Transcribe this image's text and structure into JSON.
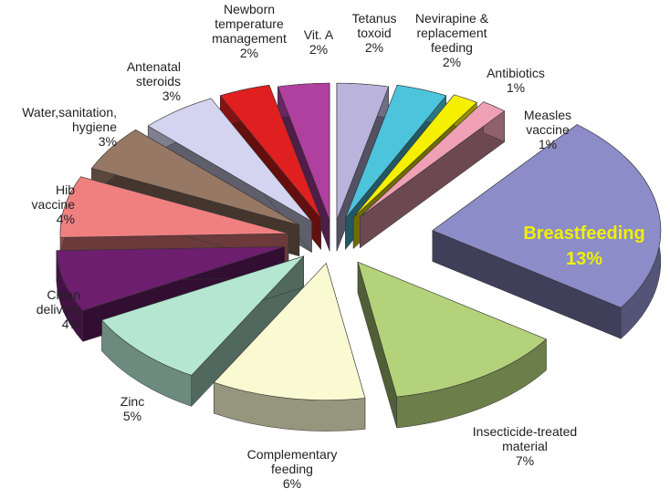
{
  "chart_data": {
    "type": "pie3d",
    "categories": [
      "Tetanus toxoid",
      "Nevirapine & replacement feeding",
      "Antibiotics",
      "Measles vaccine",
      "Breastfeeding",
      "Insecticide-treated material",
      "Complementary feeding",
      "Zinc",
      "Clean delivery",
      "Hib vaccine",
      "Water,sanitation, hygiene",
      "Antenatal steroids",
      "Newborn temperature management",
      "Vit. A"
    ],
    "values": [
      2,
      2,
      1,
      1,
      13,
      7,
      6,
      5,
      4,
      4,
      3,
      3,
      2,
      2
    ],
    "value_labels": [
      "2%",
      "2%",
      "1%",
      "1%",
      "13%",
      "7%",
      "6%",
      "5%",
      "4%",
      "4%",
      "3%",
      "3%",
      "2%",
      "2%"
    ],
    "colors": [
      "#bab4dc",
      "#4cc4dc",
      "#f4f000",
      "#f0a0b4",
      "#8c8cc8",
      "#b4d27a",
      "#fafad2",
      "#b4e6d2",
      "#6e1e6e",
      "#f08080",
      "#967864",
      "#d4d4f0",
      "#e02020",
      "#b040a0"
    ]
  }
}
